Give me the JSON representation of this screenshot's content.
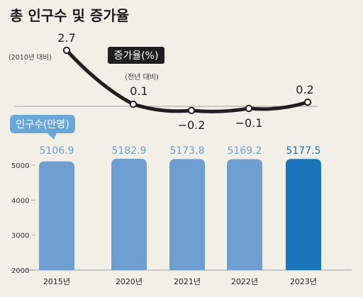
{
  "title": "총 인구수 및 증가율",
  "colors": {
    "background": "#f1efe6",
    "bar": "#6e9fd0",
    "bar_highlight": "#1b75ba",
    "line": "#1f1f1f",
    "badge_dark": "#1f1f1f",
    "badge_blue": "#6aa6da"
  },
  "chart_data": [
    {
      "type": "line",
      "title": "증가율(%)",
      "note": "(전년 대비)",
      "first_point_note": "(2010년 대비)",
      "x": [
        "2015년",
        "2020년",
        "2021년",
        "2022년",
        "2023년"
      ],
      "values": [
        2.7,
        0.1,
        -0.2,
        -0.1,
        0.2
      ],
      "value_labels": [
        "2.7",
        "0.1",
        "−0.2",
        "−0.1",
        "0.2"
      ]
    },
    {
      "type": "bar",
      "title": "인구수(만명)",
      "categories": [
        "2015년",
        "2020년",
        "2021년",
        "2022년",
        "2023년"
      ],
      "values": [
        5106.9,
        5182.9,
        5173.8,
        5169.2,
        5177.5
      ],
      "value_labels": [
        "5106.9",
        "5182.9",
        "5173.8",
        "5169.2",
        "5177.5"
      ],
      "yticks": [
        2000,
        3000,
        4000,
        5000
      ],
      "ylim": [
        2000,
        5230
      ],
      "highlight_index": 4
    }
  ]
}
